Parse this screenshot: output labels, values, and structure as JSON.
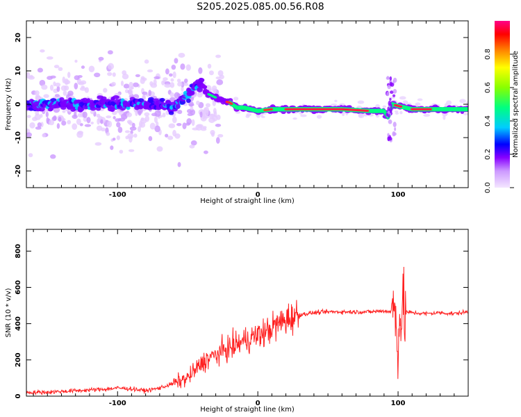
{
  "title": "S205.2025.085.00.56.R08",
  "chart_data": [
    {
      "type": "heatmap",
      "xlabel": "Height of straight line (km)",
      "ylabel": "Frequency (Hz)",
      "xlim": [
        -165,
        150
      ],
      "ylim": [
        -25,
        25
      ],
      "xticks": [
        -100,
        0,
        100
      ],
      "yticks": [
        -20,
        -10,
        0,
        10,
        20
      ],
      "colorbar": {
        "label": "Normalized spectral amplitude",
        "range": [
          0,
          1
        ],
        "ticks": [
          "0.0",
          "0.2",
          "0.4",
          "0.6",
          "0.8"
        ],
        "colormap": [
          "#f4e6ff",
          "#cc99ff",
          "#8800ff",
          "#0000ff",
          "#00ccff",
          "#00ff80",
          "#88ff00",
          "#ffff00",
          "#ff8800",
          "#ff0000",
          "#ff0088"
        ]
      },
      "ridge": {
        "x": [
          -165,
          -140,
          -120,
          -100,
          -80,
          -70,
          -60,
          -50,
          -45,
          -40,
          -35,
          -30,
          -25,
          -20,
          -15,
          -10,
          -5,
          0,
          10,
          20,
          40,
          60,
          80,
          90,
          93,
          96,
          100,
          110,
          130,
          150
        ],
        "frequency": [
          0,
          0,
          0,
          0,
          0.5,
          0,
          -1,
          3,
          5,
          6,
          3,
          2,
          1,
          0.5,
          -1,
          -1,
          -1.5,
          -2,
          -1.5,
          -1.5,
          -1.5,
          -1.5,
          -2,
          -2,
          -4,
          0,
          -0.5,
          -1.5,
          -1.5,
          -1.5
        ]
      }
    },
    {
      "type": "line",
      "xlabel": "Height of straight line (km)",
      "ylabel": "SNR (10 * v/v)",
      "xlim": [
        -165,
        150
      ],
      "ylim": [
        0,
        920
      ],
      "xticks": [
        -100,
        0,
        100
      ],
      "yticks": [
        0,
        200,
        400,
        600,
        800
      ],
      "color": "#ff2020",
      "series": [
        {
          "x": [
            -165,
            -150,
            -130,
            -110,
            -100,
            -90,
            -80,
            -70,
            -60,
            -50,
            -45,
            -40,
            -35,
            -30,
            -25,
            -20,
            -15,
            -10,
            -5,
            0,
            5,
            10,
            15,
            20,
            25,
            30,
            40,
            50,
            60,
            70,
            80,
            90,
            95,
            98,
            100,
            102,
            104,
            106,
            110,
            120,
            130,
            140,
            150
          ],
          "y": [
            20,
            22,
            30,
            38,
            45,
            40,
            30,
            45,
            70,
            100,
            140,
            180,
            210,
            225,
            250,
            265,
            285,
            305,
            320,
            335,
            350,
            375,
            400,
            420,
            440,
            450,
            460,
            465,
            465,
            465,
            465,
            470,
            465,
            480,
            300,
            470,
            460,
            465,
            460,
            455,
            460,
            455,
            465
          ]
        }
      ]
    }
  ]
}
